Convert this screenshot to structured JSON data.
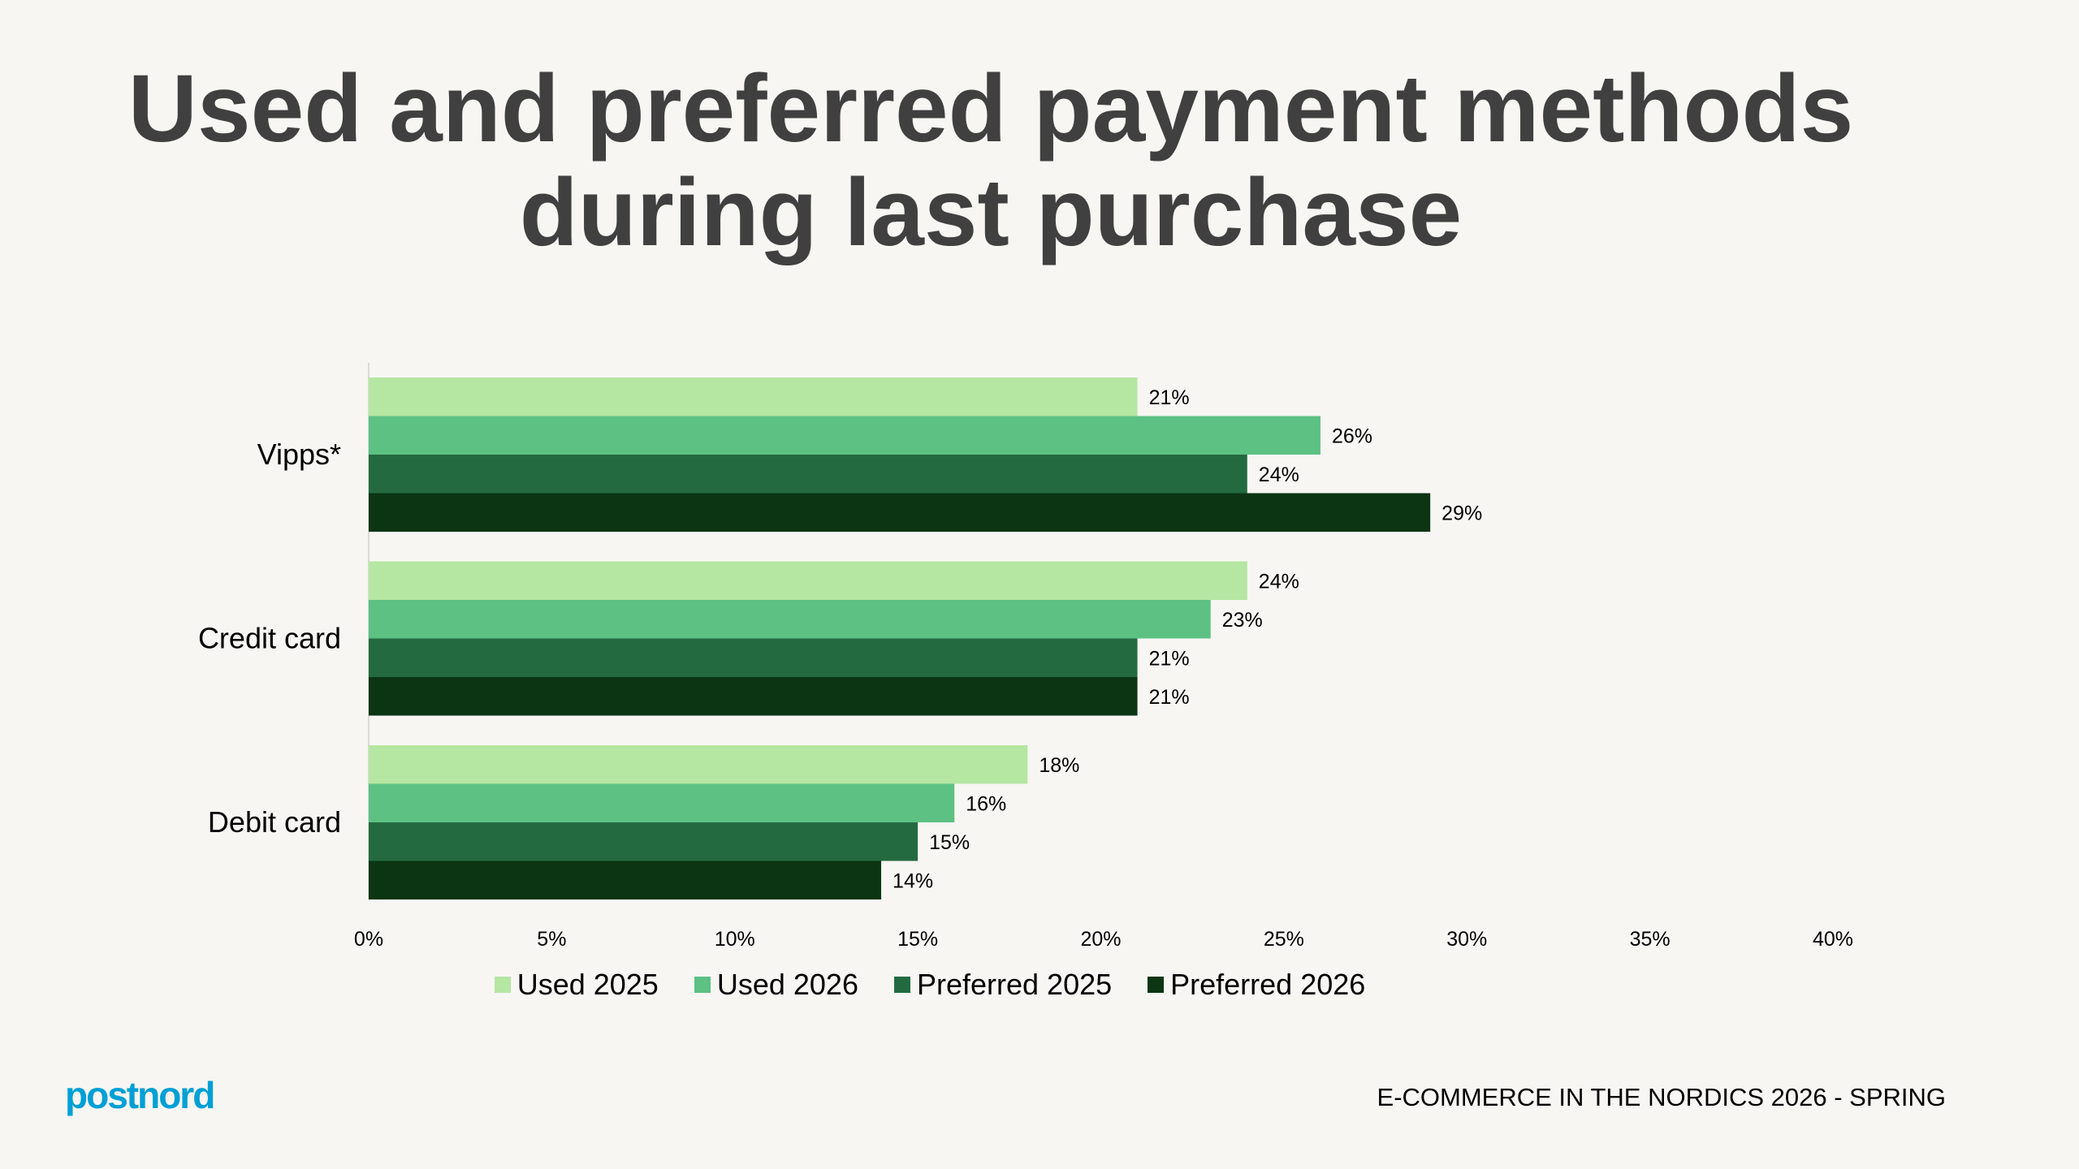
{
  "title_lines": [
    "Used and preferred payment methods",
    "during last purchase"
  ],
  "footer": "E-COMMERCE IN THE NORDICS 2026 - SPRING",
  "logo_text": "postnord",
  "colors": {
    "background": "#f7f6f3",
    "title": "#404040",
    "logo": "#00a0d6"
  },
  "chart_data": {
    "type": "bar",
    "orientation": "horizontal",
    "categories": [
      "Vipps*",
      "Credit card",
      "Debit card"
    ],
    "series": [
      {
        "name": "Used 2025",
        "color": "#b5e6a2",
        "values": [
          21,
          24,
          18
        ]
      },
      {
        "name": "Used 2026",
        "color": "#5cc183",
        "values": [
          26,
          23,
          16
        ]
      },
      {
        "name": "Preferred 2025",
        "color": "#246a40",
        "values": [
          24,
          21,
          15
        ]
      },
      {
        "name": "Preferred 2026",
        "color": "#0c3514",
        "values": [
          29,
          21,
          14
        ]
      }
    ],
    "xlim": [
      0,
      40
    ],
    "xticks": [
      "0%",
      "5%",
      "10%",
      "15%",
      "20%",
      "25%",
      "30%",
      "35%",
      "40%"
    ],
    "value_suffix": "%",
    "grid": false,
    "legend_placement": "bottom"
  }
}
